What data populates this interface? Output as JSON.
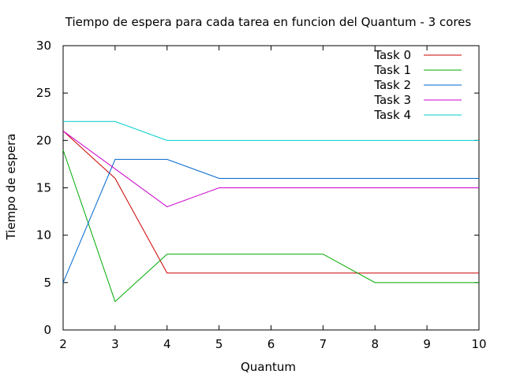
{
  "chart_data": {
    "type": "line",
    "title": "Tiempo de espera para cada tarea en funcion del Quantum - 3 cores",
    "xlabel": "Quantum",
    "ylabel": "Tiempo de espera",
    "x": [
      2,
      3,
      4,
      5,
      6,
      7,
      8,
      9,
      10
    ],
    "xlim": [
      2,
      10
    ],
    "ylim": [
      0,
      30
    ],
    "xticks": [
      "2",
      "3",
      "4",
      "5",
      "6",
      "7",
      "8",
      "9",
      "10"
    ],
    "yticks": [
      "0",
      "5",
      "10",
      "15",
      "20",
      "25",
      "30"
    ],
    "grid": false,
    "legend_position": "top-right",
    "series": [
      {
        "name": "Task 0",
        "color": "#cc0000",
        "values": [
          21,
          16,
          6,
          6,
          6,
          6,
          6,
          6,
          6
        ]
      },
      {
        "name": "Task 1",
        "color": "#00aa00",
        "values": [
          19,
          3,
          8,
          8,
          8,
          8,
          5,
          5,
          5
        ]
      },
      {
        "name": "Task 2",
        "color": "#0066cc",
        "values": [
          5,
          18,
          18,
          16,
          16,
          16,
          16,
          16,
          16
        ]
      },
      {
        "name": "Task 3",
        "color": "#cc00cc",
        "values": [
          21,
          17,
          13,
          15,
          15,
          15,
          15,
          15,
          15
        ]
      },
      {
        "name": "Task 4",
        "color": "#00cccc",
        "values": [
          22,
          22,
          20,
          20,
          20,
          20,
          20,
          20,
          20
        ]
      }
    ]
  }
}
